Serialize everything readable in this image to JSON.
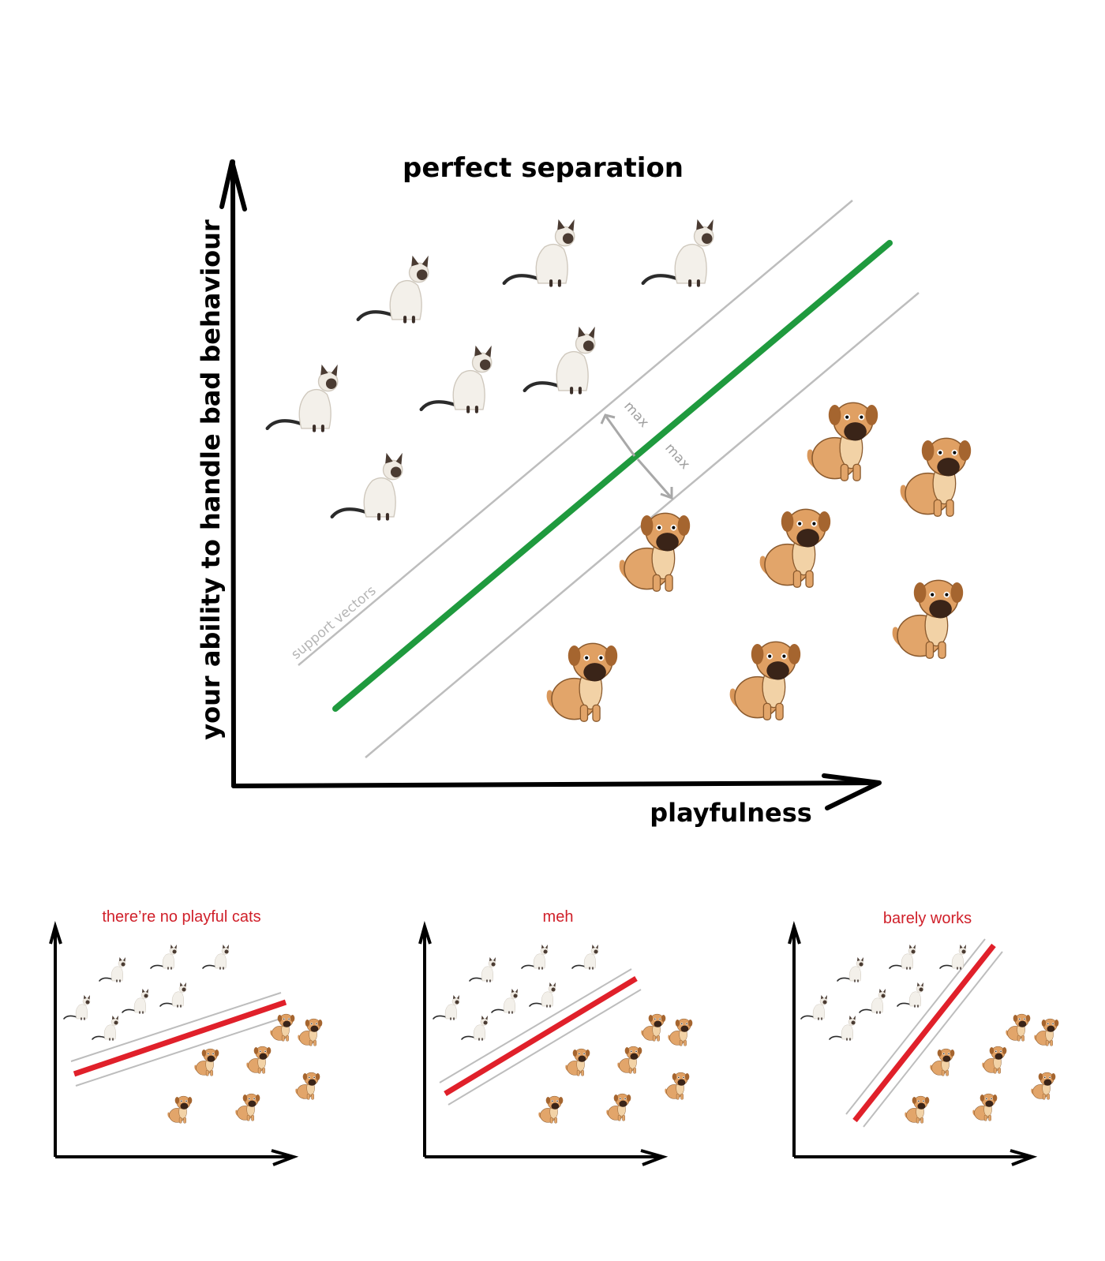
{
  "main": {
    "title": "perfect separation",
    "x_axis_label": "playfulness",
    "y_axis_label": "your ability to handle bad behaviour",
    "support_vectors_label": "support vectors",
    "margin_labels": [
      "max",
      "max"
    ],
    "colors": {
      "hyperplane": "#1f9a3e",
      "margin": "#bdbdbd",
      "axis": "#000000"
    }
  },
  "panels": [
    {
      "title": "there’re no playful cats",
      "line_color": "#e0202a",
      "title_color": "#d0202a"
    },
    {
      "title": "meh",
      "line_color": "#e0202a",
      "title_color": "#d0202a"
    },
    {
      "title": "barely works",
      "line_color": "#e0202a",
      "title_color": "#d0202a"
    }
  ],
  "icons": {
    "cat": "cat-icon",
    "dog": "dog-icon"
  }
}
